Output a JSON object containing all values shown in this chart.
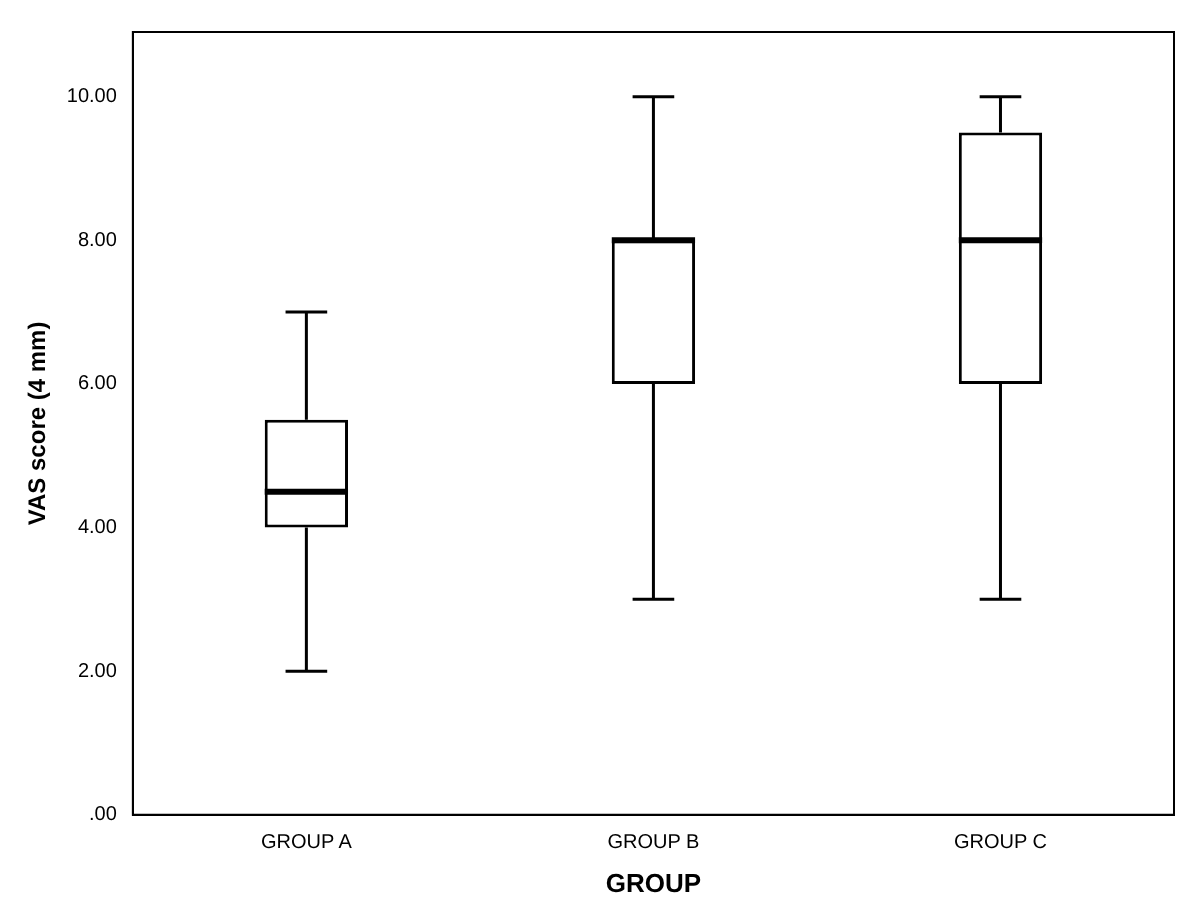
{
  "chart_data": {
    "type": "box",
    "xlabel": "GROUP",
    "ylabel": "VAS score (4 mm)",
    "categories": [
      "GROUP A",
      "GROUP B",
      "GROUP C"
    ],
    "boxes": [
      {
        "low": 2,
        "q1": 4,
        "median": 4.5,
        "q3": 5.5,
        "high": 7
      },
      {
        "low": 3,
        "q1": 6,
        "median": 8,
        "q3": 8,
        "high": 10
      },
      {
        "low": 3,
        "q1": 6,
        "median": 8,
        "q3": 9.5,
        "high": 10
      }
    ],
    "color": "#000000",
    "ylim": [
      0,
      10.9
    ],
    "yticks": [
      {
        "value": 0,
        "label": ".00"
      },
      {
        "value": 2,
        "label": "2.00"
      },
      {
        "value": 4,
        "label": "4.00"
      },
      {
        "value": 6,
        "label": "6.00"
      },
      {
        "value": 8,
        "label": "8.00"
      },
      {
        "value": 10,
        "label": "10.00"
      }
    ],
    "grid": false,
    "legend": false
  }
}
